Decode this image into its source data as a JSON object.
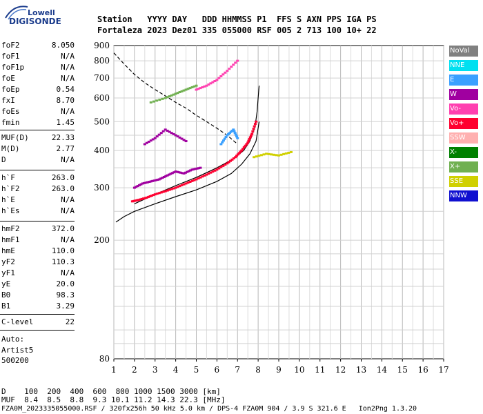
{
  "logo": {
    "line1": "Lowell",
    "line2": "DIGISONDE"
  },
  "header": {
    "row1": "Station   YYYY DAY   DDD HHMMSS P1  FFS S AXN PPS IGA PS",
    "row2": "Fortaleza 2023 Dez01 335 055000 RSF 005 2 713 100 10+ 22"
  },
  "params": [
    {
      "name": "foF2",
      "value": "8.050"
    },
    {
      "name": "foF1",
      "value": "N/A"
    },
    {
      "name": "foF1p",
      "value": "N/A"
    },
    {
      "name": "foE",
      "value": "N/A"
    },
    {
      "name": "foEp",
      "value": "0.54"
    },
    {
      "name": "fxI",
      "value": "8.70"
    },
    {
      "name": "foEs",
      "value": "N/A"
    },
    {
      "name": "fmin",
      "value": "1.45"
    },
    {
      "name": "MUF(D)",
      "value": "22.33"
    },
    {
      "name": "M(D)",
      "value": "2.77"
    },
    {
      "name": "D",
      "value": "N/A"
    },
    {
      "name": "h`F",
      "value": "263.0"
    },
    {
      "name": "h`F2",
      "value": "263.0"
    },
    {
      "name": "h`E",
      "value": "N/A"
    },
    {
      "name": "h`Es",
      "value": "N/A"
    },
    {
      "name": "hmF2",
      "value": "372.0"
    },
    {
      "name": "hmF1",
      "value": "N/A"
    },
    {
      "name": "hmE",
      "value": "110.0"
    },
    {
      "name": "yF2",
      "value": "110.3"
    },
    {
      "name": "yF1",
      "value": "N/A"
    },
    {
      "name": "yE",
      "value": "20.0"
    },
    {
      "name": "B0",
      "value": "98.3"
    },
    {
      "name": "B1",
      "value": "3.29"
    },
    {
      "name": "C-level",
      "value": "22"
    }
  ],
  "auto": {
    "line1": "Auto:",
    "line2": "Artist5",
    "line3": "500200"
  },
  "legend": [
    {
      "label": "NoVal",
      "color": "#808080"
    },
    {
      "label": "NNE",
      "color": "#00e0f0"
    },
    {
      "label": "E",
      "color": "#3aa0ff"
    },
    {
      "label": "W",
      "color": "#a000a0"
    },
    {
      "label": "Vo-",
      "color": "#ff40b0"
    },
    {
      "label": "Vo+",
      "color": "#ff0030"
    },
    {
      "label": "SSW",
      "color": "#ffb0b0"
    },
    {
      "label": "X-",
      "color": "#008000"
    },
    {
      "label": "X+",
      "color": "#70b050"
    },
    {
      "label": "SSE",
      "color": "#d0d000"
    },
    {
      "label": "NNW",
      "color": "#1010d0"
    }
  ],
  "footer": {
    "row1": "D    100  200  400  600  800 1000 1500 3000 [km]",
    "row2": "MUF  8.4  8.5  8.8  9.3 10.1 11.2 14.3 22.3 [MHz]",
    "row3": "FZA0M_2023335055000.RSF / 320fx256h 50 kHz 5.0 km / DPS-4 FZA0M 904 / 3.9 S 321.6 E   Ion2Png 1.3.20"
  },
  "chart_data": {
    "type": "scatter",
    "title": "",
    "xlabel": "",
    "ylabel": "",
    "xlim": [
      1,
      17
    ],
    "ylim": [
      80,
      900
    ],
    "y_scale": "log",
    "x_ticks": [
      1,
      2,
      3,
      4,
      5,
      6,
      7,
      8,
      9,
      10,
      11,
      12,
      13,
      14,
      15,
      16,
      17
    ],
    "y_ticks": [
      80,
      200,
      300,
      400,
      500,
      600,
      700,
      800,
      900
    ],
    "grid": true,
    "curves": [
      {
        "style": "solid",
        "x": [
          1.1,
          1.5,
          2.0,
          3.0,
          4.0,
          5.0,
          6.0,
          6.7,
          7.2,
          7.6,
          7.9,
          8.05
        ],
        "y": [
          230,
          240,
          250,
          265,
          280,
          295,
          315,
          335,
          360,
          390,
          430,
          500
        ]
      },
      {
        "style": "solid",
        "x": [
          2.0,
          3.0,
          4.0,
          5.0,
          6.0,
          6.8,
          7.3,
          7.6,
          7.85,
          7.95,
          8.0,
          8.05
        ],
        "y": [
          265,
          285,
          305,
          325,
          350,
          375,
          400,
          430,
          480,
          540,
          600,
          660
        ]
      },
      {
        "style": "dashed",
        "x": [
          1.0,
          1.5,
          2.0,
          2.5,
          3.0,
          3.5,
          4.0,
          4.5,
          5.0,
          5.5,
          6.0,
          6.5,
          7.0
        ],
        "y": [
          850,
          780,
          720,
          675,
          640,
          610,
          580,
          555,
          525,
          500,
          475,
          450,
          420
        ]
      }
    ],
    "traces": [
      {
        "polarization": "Vo+",
        "x": [
          1.9,
          2.2,
          2.6,
          3.0,
          3.5,
          4.0,
          4.5,
          5.0,
          5.5,
          6.0,
          6.5,
          6.9,
          7.2,
          7.5,
          7.7,
          7.9
        ],
        "y": [
          270,
          273,
          278,
          285,
          292,
          300,
          310,
          320,
          332,
          345,
          362,
          380,
          400,
          425,
          455,
          500
        ]
      },
      {
        "polarization": "W",
        "x": [
          2.0,
          2.4,
          2.8,
          3.2,
          3.6,
          4.0,
          4.4,
          4.8,
          5.2
        ],
        "y": [
          300,
          310,
          315,
          320,
          330,
          340,
          335,
          345,
          350
        ]
      },
      {
        "polarization": "W",
        "x": [
          2.5,
          3.0,
          3.5,
          4.0,
          4.5
        ],
        "y": [
          420,
          440,
          470,
          450,
          430
        ]
      },
      {
        "polarization": "E",
        "x": [
          6.2,
          6.5,
          6.8,
          7.0
        ],
        "y": [
          420,
          450,
          470,
          440
        ]
      },
      {
        "polarization": "X+",
        "x": [
          2.8,
          3.5,
          4.0,
          4.5,
          5.0
        ],
        "y": [
          580,
          600,
          620,
          640,
          660
        ]
      },
      {
        "polarization": "Vo-",
        "x": [
          5.0,
          5.5,
          6.0,
          6.5,
          7.0
        ],
        "y": [
          640,
          660,
          690,
          740,
          800
        ]
      },
      {
        "polarization": "SSE",
        "x": [
          7.8,
          8.4,
          9.0,
          9.6
        ],
        "y": [
          380,
          390,
          385,
          395
        ]
      }
    ]
  }
}
